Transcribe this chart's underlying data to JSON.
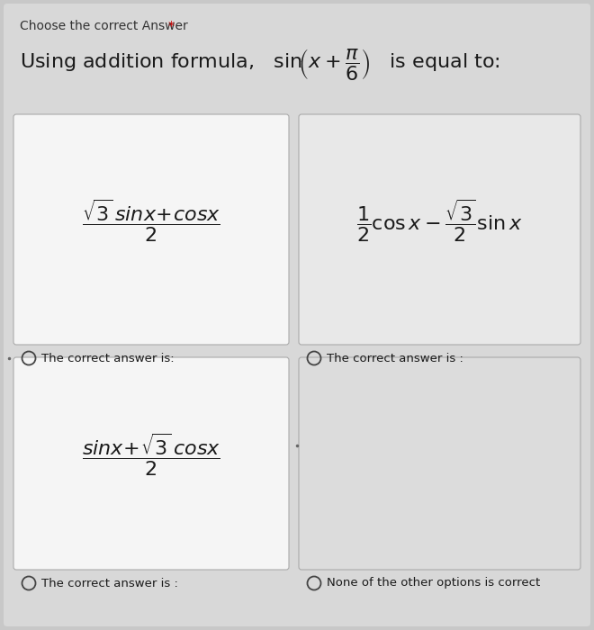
{
  "background_color": "#d8d8d8",
  "card_bg_A": "#f5f5f5",
  "card_bg_B": "#e8e8e8",
  "card_bg_C": "#f5f5f5",
  "card_bg_D": "#dcdcdc",
  "outer_bg": "#cccccc",
  "header_text": "Choose the correct Answer *",
  "label_A": "The correct answer is:",
  "label_B": "The correct answer is :",
  "label_C": "The correct answer is :",
  "label_D": "None of the other options is correct",
  "text_color": "#1a1a1a",
  "header_color": "#333333",
  "star_color": "#cc0000",
  "radio_ec": "#444444",
  "card_ec": "#aaaaaa",
  "fig_bg": "#c8c8c8"
}
